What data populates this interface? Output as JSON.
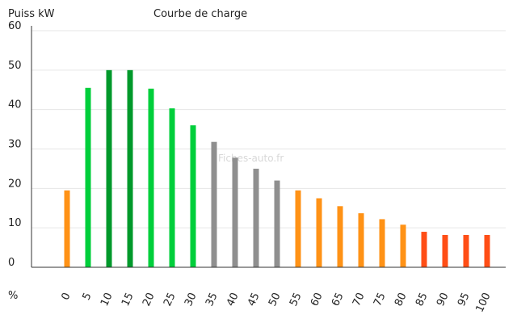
{
  "chart_data": {
    "type": "bar",
    "title": "Courbe de charge",
    "ylabel": "Puiss kW",
    "xlabel": "%",
    "watermark": "Fiches-auto.fr",
    "ylim": [
      0,
      60
    ],
    "yticks": [
      0,
      10,
      20,
      30,
      40,
      50,
      60
    ],
    "grid": true,
    "categories": [
      "0",
      "5",
      "10",
      "15",
      "20",
      "25",
      "30",
      "35",
      "40",
      "45",
      "50",
      "55",
      "60",
      "65",
      "70",
      "75",
      "80",
      "85",
      "90",
      "95",
      "100"
    ],
    "values": [
      19.5,
      45.5,
      50,
      50,
      45.3,
      40.3,
      36,
      31.8,
      27.8,
      25,
      22,
      19.5,
      17.5,
      15.5,
      13.7,
      12.2,
      10.8,
      9,
      8.2,
      8.2,
      8.2
    ],
    "bar_colors": [
      "#ff9216",
      "#00cf3b",
      "#00992b",
      "#00992b",
      "#00cf3b",
      "#00cf3b",
      "#00cf3b",
      "#8f8f8f",
      "#8f8f8f",
      "#8f8f8f",
      "#8f8f8f",
      "#ff9216",
      "#ff9216",
      "#ff9216",
      "#ff9216",
      "#ff9216",
      "#ff9216",
      "#ff4e16",
      "#ff4e16",
      "#ff4e16",
      "#ff4e16"
    ]
  }
}
